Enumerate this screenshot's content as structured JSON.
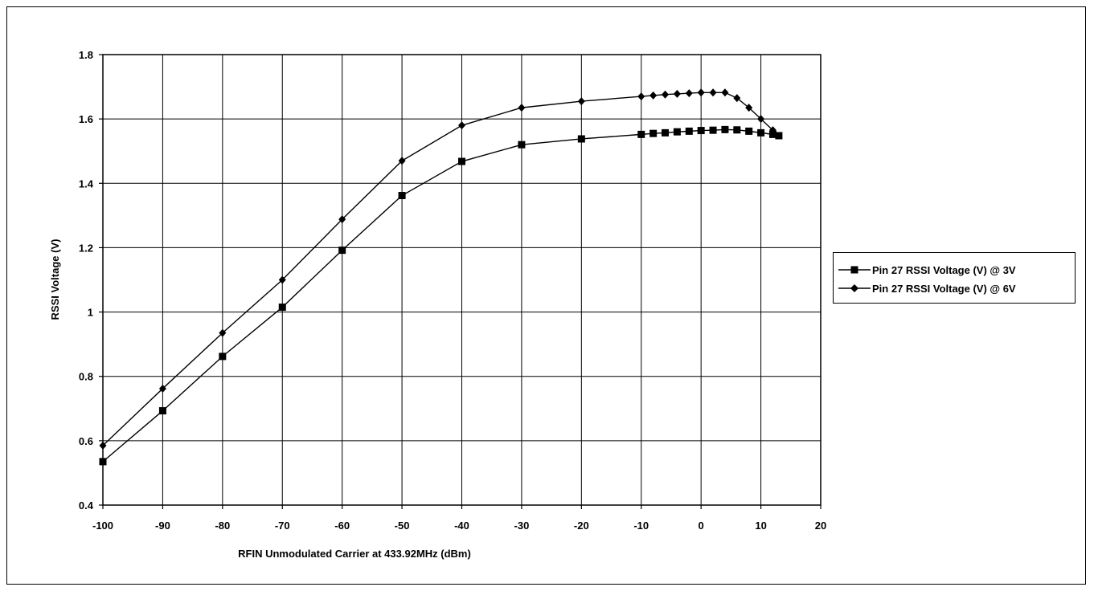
{
  "chart_data": {
    "type": "line",
    "title": "",
    "xlabel": "RFIN Unmodulated Carrier at 433.92MHz (dBm)",
    "ylabel": "RSSI Voltage (V)",
    "xlim": [
      -100,
      20
    ],
    "ylim": [
      0.4,
      1.8
    ],
    "xticks": [
      -100,
      -90,
      -80,
      -70,
      -60,
      -50,
      -40,
      -30,
      -20,
      -10,
      0,
      10,
      20
    ],
    "yticks": [
      0.4,
      0.6,
      0.8,
      1,
      1.2,
      1.4,
      1.6,
      1.8
    ],
    "ytick_labels": [
      "0.4",
      "0.6",
      "0.8",
      "1",
      "1.2",
      "1.4",
      "1.6",
      "1.8"
    ],
    "grid": true,
    "legend_position": "right",
    "series": [
      {
        "name": "Pin 27 RSSI Voltage (V) @ 3V",
        "marker": "square",
        "color": "#000000",
        "x": [
          -100,
          -90,
          -80,
          -70,
          -60,
          -50,
          -40,
          -30,
          -20,
          -10,
          -8,
          -6,
          -4,
          -2,
          0,
          2,
          4,
          6,
          8,
          10,
          12,
          13
        ],
        "y": [
          0.535,
          0.693,
          0.862,
          1.015,
          1.192,
          1.362,
          1.468,
          1.52,
          1.538,
          1.552,
          1.555,
          1.557,
          1.56,
          1.562,
          1.564,
          1.565,
          1.567,
          1.566,
          1.562,
          1.557,
          1.552,
          1.548
        ]
      },
      {
        "name": "Pin 27 RSSI Voltage (V) @ 6V",
        "marker": "diamond",
        "color": "#000000",
        "x": [
          -100,
          -90,
          -80,
          -70,
          -60,
          -50,
          -40,
          -30,
          -20,
          -10,
          -8,
          -6,
          -4,
          -2,
          0,
          2,
          4,
          6,
          8,
          10,
          12
        ],
        "y": [
          0.585,
          0.762,
          0.935,
          1.1,
          1.288,
          1.47,
          1.58,
          1.635,
          1.655,
          1.67,
          1.673,
          1.676,
          1.678,
          1.68,
          1.682,
          1.682,
          1.682,
          1.665,
          1.635,
          1.6,
          1.565
        ]
      }
    ]
  },
  "legend": {
    "entries": [
      "Pin 27 RSSI Voltage (V) @ 3V",
      "Pin 27 RSSI Voltage (V) @ 6V"
    ]
  }
}
